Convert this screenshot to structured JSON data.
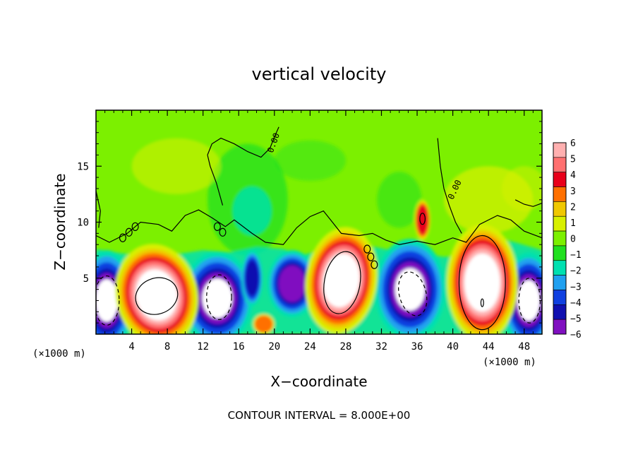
{
  "chart_data": {
    "type": "heatmap",
    "title": "vertical velocity",
    "xlabel": "X−coordinate",
    "ylabel": "Z−coordinate",
    "x_unit": "(×1000 m)",
    "xlim": [
      0,
      50
    ],
    "ylim": [
      0,
      20
    ],
    "x_ticks": [
      4,
      8,
      12,
      16,
      20,
      24,
      28,
      32,
      36,
      40,
      44,
      48
    ],
    "y_ticks": [
      5,
      10,
      15
    ],
    "colorbar": {
      "levels": [
        "6",
        "5",
        "4",
        "3",
        "2",
        "1",
        "0",
        "−1",
        "−2",
        "−3",
        "−4",
        "−5",
        "−6"
      ],
      "range": [
        -6,
        6
      ],
      "colors": [
        "#ffb0b0",
        "#ff7070",
        "#e8001a",
        "#ff7000",
        "#f0c800",
        "#d8f000",
        "#7cf000",
        "#20e020",
        "#00e0b0",
        "#20a0f0",
        "#1040e0",
        "#1010b0",
        "#8010c0"
      ]
    },
    "contour_labels": [
      "0.00",
      "0.00"
    ],
    "updraft_cores": [
      {
        "x": 6.8,
        "z": 3.5,
        "w_peak": 9
      },
      {
        "x": 27.5,
        "z": 4.8,
        "w_peak": 9
      },
      {
        "x": 43.3,
        "z": 4.6,
        "w_peak": 11
      },
      {
        "x": 36.6,
        "z": 10.2,
        "w_peak": 4
      },
      {
        "x": 18.8,
        "z": 0.9,
        "w_peak": 3
      }
    ],
    "downdraft_cores": [
      {
        "x": 1.2,
        "z": 3.0,
        "w_peak": -9
      },
      {
        "x": 13.6,
        "z": 3.2,
        "w_peak": -9
      },
      {
        "x": 22.0,
        "z": 4.5,
        "w_peak": -6
      },
      {
        "x": 35.2,
        "z": 4.0,
        "w_peak": -9
      },
      {
        "x": 48.5,
        "z": 3.0,
        "w_peak": -9
      },
      {
        "x": 17.5,
        "z": 5.0,
        "w_peak": -5
      }
    ],
    "upper_weak_regions": [
      {
        "x": 17.0,
        "z": 12.0,
        "w": -1.5
      },
      {
        "x": 44.0,
        "z": 12.0,
        "w": 0.6
      },
      {
        "x": 8.0,
        "z": 15.0,
        "w": 0.7
      }
    ]
  },
  "footer": {
    "contour_note": "CONTOUR INTERVAL = 8.000E+00"
  }
}
